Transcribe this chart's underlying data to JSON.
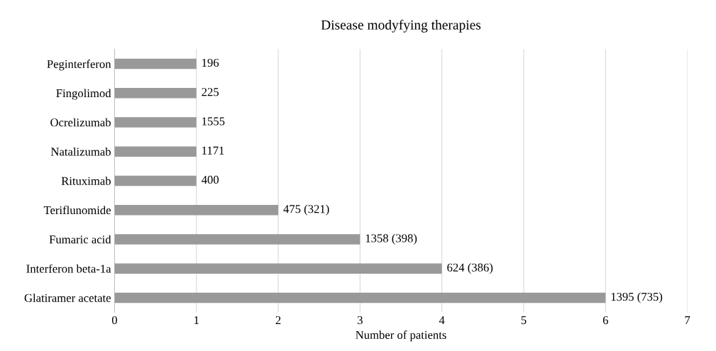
{
  "chart_data": {
    "type": "bar",
    "orientation": "horizontal",
    "title": "Disease modyfying therapies",
    "xlabel": "Number of patients",
    "categories": [
      "Peginterferon",
      "Fingolimod",
      "Ocrelizumab",
      "Natalizumab",
      "Rituximab",
      "Teriflunomide",
      "Fumaric acid",
      "Interferon beta-1a",
      "Glatiramer acetate"
    ],
    "values": [
      1,
      1,
      1,
      1,
      1,
      2,
      3,
      4,
      6
    ],
    "annotations": [
      {
        "text": "196",
        "x": 1,
        "y": "Peginterferon"
      },
      {
        "text": "225",
        "x": 1,
        "y": "Fingolimod"
      },
      {
        "text": "1555",
        "x": 1,
        "y": "Ocrelizumab"
      },
      {
        "text": "1171",
        "x": 1,
        "y": "Natalizumab"
      },
      {
        "text": "400",
        "x": 1,
        "y": "Rituximab"
      },
      {
        "text": "475 (321)",
        "x": 2,
        "y": "Teriflunomide"
      },
      {
        "text": "1358 (398)",
        "x": 3,
        "y": "Fumaric acid"
      },
      {
        "text": "624 (386)",
        "x": 4,
        "y": "Interferon beta-1a"
      },
      {
        "text": "1395 (735)",
        "x": 6,
        "y": "Glatiramer acetate"
      }
    ],
    "color": "#999999",
    "xlim": [
      0,
      7
    ],
    "xticks": [
      0,
      1,
      2,
      3,
      4,
      5,
      6,
      7
    ],
    "grid": "x",
    "legend": false
  }
}
